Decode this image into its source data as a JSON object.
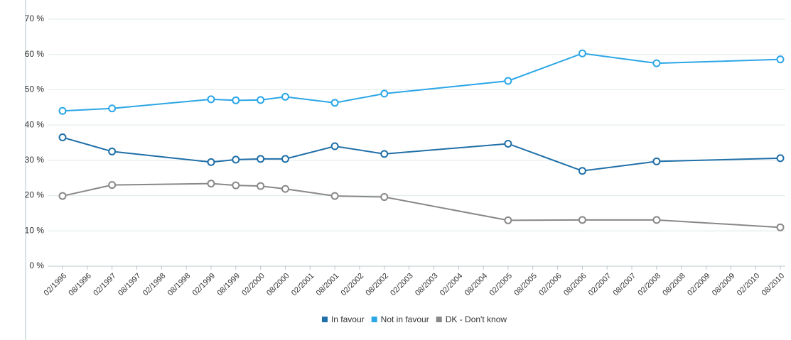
{
  "chart_data": {
    "type": "line",
    "x": [
      1996.083,
      1997.083,
      1999.083,
      1999.583,
      2000.083,
      2000.583,
      2001.583,
      2002.583,
      2005.083,
      2006.583,
      2008.083,
      2010.583
    ],
    "series": [
      {
        "name": "In favour",
        "color": "#1f6fa8",
        "values": [
          36.5,
          32.5,
          29.5,
          30.2,
          30.4,
          30.4,
          34,
          31.8,
          34.7,
          27,
          29.7,
          30.6
        ]
      },
      {
        "name": "Not in favour",
        "color": "#2ba6e6",
        "values": [
          44,
          44.7,
          47.3,
          47,
          47.1,
          48,
          46.3,
          48.9,
          52.5,
          60.3,
          57.5,
          58.6
        ]
      },
      {
        "name": "DK - Don't know",
        "color": "#888888",
        "values": [
          19.9,
          23,
          23.4,
          22.9,
          22.7,
          21.9,
          19.9,
          19.6,
          13,
          13.1,
          13.1,
          11
        ]
      }
    ],
    "xlim": [
      1996.083,
      2010.583
    ],
    "xticks": [
      {
        "value": 1996.083,
        "label": "02/1996"
      },
      {
        "value": 1996.583,
        "label": "08/1996"
      },
      {
        "value": 1997.083,
        "label": "02/1997"
      },
      {
        "value": 1997.583,
        "label": "08/1997"
      },
      {
        "value": 1998.083,
        "label": "02/1998"
      },
      {
        "value": 1998.583,
        "label": "08/1998"
      },
      {
        "value": 1999.083,
        "label": "02/1999"
      },
      {
        "value": 1999.583,
        "label": "08/1999"
      },
      {
        "value": 2000.083,
        "label": "02/2000"
      },
      {
        "value": 2000.583,
        "label": "08/2000"
      },
      {
        "value": 2001.083,
        "label": "02/2001"
      },
      {
        "value": 2001.583,
        "label": "08/2001"
      },
      {
        "value": 2002.083,
        "label": "02/2002"
      },
      {
        "value": 2002.583,
        "label": "08/2002"
      },
      {
        "value": 2003.083,
        "label": "02/2003"
      },
      {
        "value": 2003.583,
        "label": "08/2003"
      },
      {
        "value": 2004.083,
        "label": "02/2004"
      },
      {
        "value": 2004.583,
        "label": "08/2004"
      },
      {
        "value": 2005.083,
        "label": "02/2005"
      },
      {
        "value": 2005.583,
        "label": "08/2005"
      },
      {
        "value": 2006.083,
        "label": "02/2006"
      },
      {
        "value": 2006.583,
        "label": "08/2006"
      },
      {
        "value": 2007.083,
        "label": "02/2007"
      },
      {
        "value": 2007.583,
        "label": "08/2007"
      },
      {
        "value": 2008.083,
        "label": "02/2008"
      },
      {
        "value": 2008.583,
        "label": "08/2008"
      },
      {
        "value": 2009.083,
        "label": "02/2009"
      },
      {
        "value": 2009.583,
        "label": "08/2009"
      },
      {
        "value": 2010.083,
        "label": "02/2010"
      },
      {
        "value": 2010.583,
        "label": "08/2010"
      }
    ],
    "ylim": [
      0,
      70
    ],
    "yticks": [
      {
        "value": 0,
        "label": "0 %"
      },
      {
        "value": 10,
        "label": "10 %"
      },
      {
        "value": 20,
        "label": "20 %"
      },
      {
        "value": 30,
        "label": "30 %"
      },
      {
        "value": 40,
        "label": "40 %"
      },
      {
        "value": 50,
        "label": "50 %"
      },
      {
        "value": 60,
        "label": "60 %"
      },
      {
        "value": 70,
        "label": "70 %"
      }
    ],
    "grid": true,
    "legend": "bottom"
  }
}
